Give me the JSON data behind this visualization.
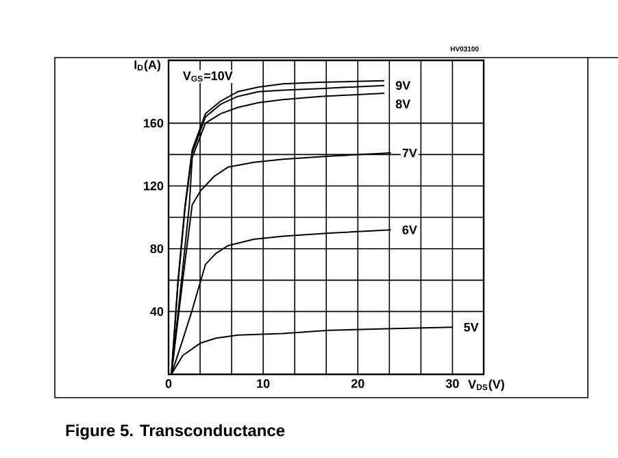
{
  "chart_data": {
    "type": "line",
    "title": "Figure 5.    Transconductance",
    "xlabel": "V$_{DS}$(V)",
    "ylabel": "I$_{D}$(A)",
    "annotations": [
      "HV03100"
    ],
    "xlim": [
      0,
      33.3
    ],
    "ylim": [
      0,
      200
    ],
    "xticks": [
      0,
      10,
      20,
      30
    ],
    "yticks": [
      40,
      80,
      120,
      160
    ],
    "grid": true,
    "marker": "none",
    "line_style": "solid",
    "series": [
      {
        "name": "V$_{GS}$=10V",
        "color": "#000000",
        "x": [
          0.3,
          1.0,
          1.75,
          2.5,
          3.9,
          5.5,
          7.3,
          9.5,
          12.1,
          16,
          22.8
        ],
        "values": [
          0,
          60,
          108,
          143,
          166,
          174,
          180,
          183,
          185,
          186,
          187
        ]
      },
      {
        "name": "9V",
        "color": "#000000",
        "x": [
          0.3,
          1.0,
          1.75,
          2.5,
          3.9,
          5.5,
          7.3,
          9.5,
          12.1,
          16,
          22.8
        ],
        "values": [
          0,
          58,
          106,
          141,
          164,
          172,
          177,
          180,
          181,
          182,
          184
        ]
      },
      {
        "name": "8V",
        "color": "#000000",
        "x": [
          0.3,
          1.2,
          2.2,
          2.5,
          3.9,
          5.5,
          7.3,
          9.5,
          12.1,
          16,
          22.8
        ],
        "values": [
          0,
          50,
          108,
          138,
          160,
          166,
          170,
          173,
          175,
          177,
          179
        ]
      },
      {
        "name": "7V",
        "color": "#000000",
        "x": [
          0.3,
          1.5,
          2.5,
          3.4,
          4.8,
          6.3,
          9,
          12.1,
          17,
          23.5
        ],
        "values": [
          0,
          60,
          108,
          117,
          126,
          132,
          135,
          137,
          139,
          141
        ]
      },
      {
        "name": "6V",
        "color": "#000000",
        "x": [
          0.3,
          1.5,
          2.5,
          3.9,
          5,
          6.3,
          9,
          12.1,
          17,
          23.5
        ],
        "values": [
          0,
          22,
          41,
          70,
          77,
          82,
          86,
          88,
          90,
          92
        ]
      },
      {
        "name": "5V",
        "color": "#000000",
        "x": [
          0.3,
          1.5,
          3.4,
          5,
          7.3,
          12,
          17,
          23,
          30
        ],
        "values": [
          0,
          12,
          20,
          23,
          25,
          26,
          28,
          29,
          30
        ]
      }
    ]
  }
}
